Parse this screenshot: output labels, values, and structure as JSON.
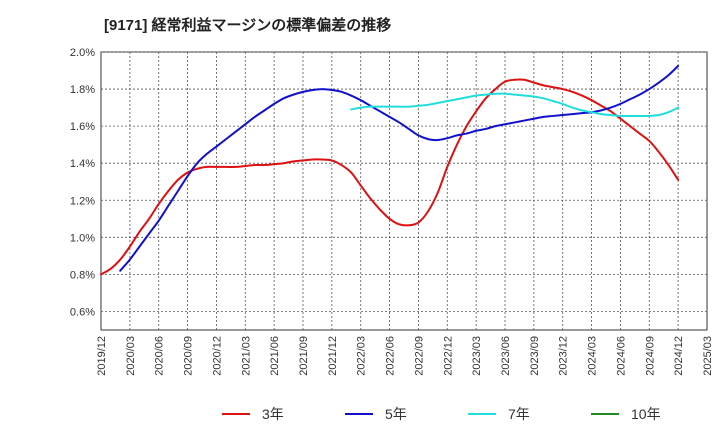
{
  "title": "[9171]  経常利益マージンの標準偏差の推移",
  "chart_data": {
    "type": "line",
    "title": "[9171]  経常利益マージンの標準偏差の推移",
    "xlabel": "",
    "ylabel": "",
    "x_ticks": [
      "2019/12",
      "2020/03",
      "2020/06",
      "2020/09",
      "2020/12",
      "2021/03",
      "2021/06",
      "2021/09",
      "2021/12",
      "2022/03",
      "2022/06",
      "2022/09",
      "2022/12",
      "2023/03",
      "2023/06",
      "2023/09",
      "2023/12",
      "2024/03",
      "2024/06",
      "2024/09",
      "2024/12",
      "2025/03"
    ],
    "y_ticks": [
      "0.6%",
      "0.8%",
      "1.0%",
      "1.2%",
      "1.4%",
      "1.6%",
      "1.8%",
      "2.0%"
    ],
    "ylim": [
      0.5,
      2.0
    ],
    "x_range": [
      "2019/12",
      "2025/03"
    ],
    "grid": true,
    "legend_position": "bottom",
    "series": [
      {
        "name": "3年",
        "color": "#dd1111",
        "points": [
          [
            "2019/12",
            0.8
          ],
          [
            "2020/01",
            0.83
          ],
          [
            "2020/02",
            0.88
          ],
          [
            "2020/03",
            0.95
          ],
          [
            "2020/04",
            1.03
          ],
          [
            "2020/05",
            1.1
          ],
          [
            "2020/06",
            1.18
          ],
          [
            "2020/07",
            1.25
          ],
          [
            "2020/08",
            1.31
          ],
          [
            "2020/09",
            1.35
          ],
          [
            "2020/10",
            1.37
          ],
          [
            "2020/11",
            1.38
          ],
          [
            "2020/12",
            1.38
          ],
          [
            "2021/01",
            1.38
          ],
          [
            "2021/02",
            1.38
          ],
          [
            "2021/03",
            1.385
          ],
          [
            "2021/04",
            1.39
          ],
          [
            "2021/05",
            1.39
          ],
          [
            "2021/06",
            1.395
          ],
          [
            "2021/07",
            1.4
          ],
          [
            "2021/08",
            1.41
          ],
          [
            "2021/09",
            1.415
          ],
          [
            "2021/10",
            1.42
          ],
          [
            "2021/11",
            1.42
          ],
          [
            "2021/12",
            1.415
          ],
          [
            "2022/01",
            1.39
          ],
          [
            "2022/02",
            1.35
          ],
          [
            "2022/03",
            1.28
          ],
          [
            "2022/04",
            1.21
          ],
          [
            "2022/05",
            1.15
          ],
          [
            "2022/06",
            1.1
          ],
          [
            "2022/07",
            1.07
          ],
          [
            "2022/08",
            1.065
          ],
          [
            "2022/09",
            1.08
          ],
          [
            "2022/10",
            1.14
          ],
          [
            "2022/11",
            1.24
          ],
          [
            "2022/12",
            1.38
          ],
          [
            "2023/01",
            1.5
          ],
          [
            "2023/02",
            1.6
          ],
          [
            "2023/03",
            1.68
          ],
          [
            "2023/04",
            1.75
          ],
          [
            "2023/05",
            1.8
          ],
          [
            "2023/06",
            1.84
          ],
          [
            "2023/07",
            1.85
          ],
          [
            "2023/08",
            1.85
          ],
          [
            "2023/09",
            1.835
          ],
          [
            "2023/10",
            1.82
          ],
          [
            "2023/11",
            1.81
          ],
          [
            "2023/12",
            1.8
          ],
          [
            "2024/01",
            1.785
          ],
          [
            "2024/02",
            1.765
          ],
          [
            "2024/03",
            1.74
          ],
          [
            "2024/04",
            1.71
          ],
          [
            "2024/05",
            1.68
          ],
          [
            "2024/06",
            1.64
          ],
          [
            "2024/07",
            1.6
          ],
          [
            "2024/08",
            1.56
          ],
          [
            "2024/09",
            1.52
          ],
          [
            "2024/10",
            1.46
          ],
          [
            "2024/11",
            1.39
          ],
          [
            "2024/12",
            1.31
          ]
        ]
      },
      {
        "name": "5年",
        "color": "#1111cc",
        "points": [
          [
            "2020/02",
            0.82
          ],
          [
            "2020/03",
            0.88
          ],
          [
            "2020/04",
            0.95
          ],
          [
            "2020/05",
            1.02
          ],
          [
            "2020/06",
            1.09
          ],
          [
            "2020/07",
            1.17
          ],
          [
            "2020/08",
            1.25
          ],
          [
            "2020/09",
            1.33
          ],
          [
            "2020/10",
            1.4
          ],
          [
            "2020/11",
            1.45
          ],
          [
            "2020/12",
            1.49
          ],
          [
            "2021/01",
            1.53
          ],
          [
            "2021/02",
            1.57
          ],
          [
            "2021/03",
            1.61
          ],
          [
            "2021/04",
            1.65
          ],
          [
            "2021/05",
            1.685
          ],
          [
            "2021/06",
            1.72
          ],
          [
            "2021/07",
            1.75
          ],
          [
            "2021/08",
            1.77
          ],
          [
            "2021/09",
            1.785
          ],
          [
            "2021/10",
            1.795
          ],
          [
            "2021/11",
            1.8
          ],
          [
            "2021/12",
            1.795
          ],
          [
            "2022/01",
            1.785
          ],
          [
            "2022/02",
            1.765
          ],
          [
            "2022/03",
            1.74
          ],
          [
            "2022/04",
            1.71
          ],
          [
            "2022/05",
            1.68
          ],
          [
            "2022/06",
            1.65
          ],
          [
            "2022/07",
            1.62
          ],
          [
            "2022/08",
            1.585
          ],
          [
            "2022/09",
            1.55
          ],
          [
            "2022/10",
            1.53
          ],
          [
            "2022/11",
            1.525
          ],
          [
            "2022/12",
            1.535
          ],
          [
            "2023/01",
            1.55
          ],
          [
            "2023/02",
            1.56
          ],
          [
            "2023/03",
            1.575
          ],
          [
            "2023/04",
            1.585
          ],
          [
            "2023/05",
            1.6
          ],
          [
            "2023/06",
            1.61
          ],
          [
            "2023/07",
            1.62
          ],
          [
            "2023/08",
            1.63
          ],
          [
            "2023/09",
            1.64
          ],
          [
            "2023/10",
            1.65
          ],
          [
            "2023/11",
            1.655
          ],
          [
            "2023/12",
            1.66
          ],
          [
            "2024/01",
            1.665
          ],
          [
            "2024/02",
            1.67
          ],
          [
            "2024/03",
            1.675
          ],
          [
            "2024/04",
            1.685
          ],
          [
            "2024/05",
            1.7
          ],
          [
            "2024/06",
            1.72
          ],
          [
            "2024/07",
            1.745
          ],
          [
            "2024/08",
            1.77
          ],
          [
            "2024/09",
            1.8
          ],
          [
            "2024/10",
            1.835
          ],
          [
            "2024/11",
            1.875
          ],
          [
            "2024/12",
            1.925
          ]
        ]
      },
      {
        "name": "7年",
        "color": "#22dddd",
        "points": [
          [
            "2022/02",
            1.69
          ],
          [
            "2022/03",
            1.7
          ],
          [
            "2022/04",
            1.705
          ],
          [
            "2022/05",
            1.705
          ],
          [
            "2022/06",
            1.705
          ],
          [
            "2022/07",
            1.705
          ],
          [
            "2022/08",
            1.705
          ],
          [
            "2022/09",
            1.71
          ],
          [
            "2022/10",
            1.715
          ],
          [
            "2022/11",
            1.725
          ],
          [
            "2022/12",
            1.735
          ],
          [
            "2023/01",
            1.745
          ],
          [
            "2023/02",
            1.755
          ],
          [
            "2023/03",
            1.765
          ],
          [
            "2023/04",
            1.77
          ],
          [
            "2023/05",
            1.775
          ],
          [
            "2023/06",
            1.775
          ],
          [
            "2023/07",
            1.77
          ],
          [
            "2023/08",
            1.765
          ],
          [
            "2023/09",
            1.76
          ],
          [
            "2023/10",
            1.75
          ],
          [
            "2023/11",
            1.735
          ],
          [
            "2023/12",
            1.72
          ],
          [
            "2024/01",
            1.7
          ],
          [
            "2024/02",
            1.685
          ],
          [
            "2024/03",
            1.675
          ],
          [
            "2024/04",
            1.665
          ],
          [
            "2024/05",
            1.66
          ],
          [
            "2024/06",
            1.655
          ],
          [
            "2024/07",
            1.655
          ],
          [
            "2024/08",
            1.655
          ],
          [
            "2024/09",
            1.655
          ],
          [
            "2024/10",
            1.66
          ],
          [
            "2024/11",
            1.675
          ],
          [
            "2024/12",
            1.7
          ]
        ]
      },
      {
        "name": "10年",
        "color": "#228822",
        "points": []
      }
    ]
  }
}
